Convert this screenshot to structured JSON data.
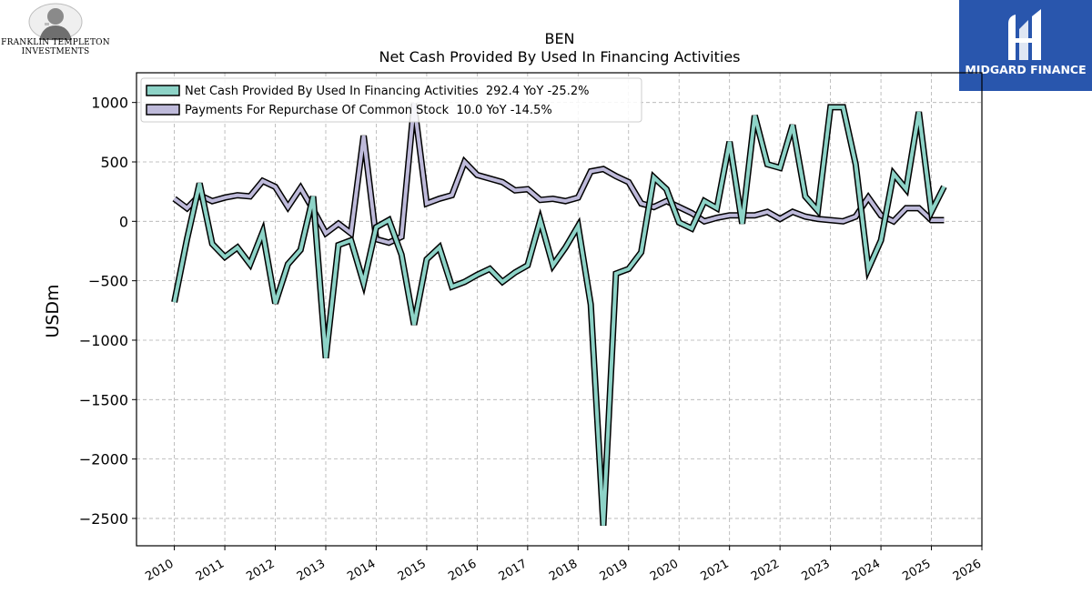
{
  "header": {
    "left_logo": {
      "line1": "FRANKLIN TEMPLETON",
      "line2": "INVESTMENTS",
      "icon": "portrait-seal-icon"
    },
    "right_logo": {
      "name": "MIDGARD FINANCE",
      "icon": "midgard-monogram-icon",
      "background": "#2956ad"
    }
  },
  "chart_data": {
    "type": "line",
    "title": "BEN",
    "subtitle": "Net Cash Provided By Used In Financing Activities",
    "ylabel": "USDm",
    "xlabel": "",
    "xlim": [
      2009.25,
      2026.0
    ],
    "ylim": [
      -2730,
      1250
    ],
    "x_ticks": [
      2010,
      2011,
      2012,
      2013,
      2014,
      2015,
      2016,
      2017,
      2018,
      2019,
      2020,
      2021,
      2022,
      2023,
      2024,
      2025,
      2026
    ],
    "y_ticks": [
      1000,
      500,
      0,
      -500,
      -1000,
      -1500,
      -2000,
      -2500
    ],
    "y_tick_labels": [
      "1000",
      "500",
      "0",
      "−500",
      "−1000",
      "−1500",
      "−2000",
      "−2500"
    ],
    "grid": true,
    "legend_position": "top-left",
    "x": [
      2010.0,
      2010.25,
      2010.5,
      2010.75,
      2011.0,
      2011.25,
      2011.5,
      2011.75,
      2012.0,
      2012.25,
      2012.5,
      2012.75,
      2013.0,
      2013.25,
      2013.5,
      2013.75,
      2014.0,
      2014.25,
      2014.5,
      2014.75,
      2015.0,
      2015.25,
      2015.5,
      2015.75,
      2016.0,
      2016.25,
      2016.5,
      2016.75,
      2017.0,
      2017.25,
      2017.5,
      2017.75,
      2018.0,
      2018.25,
      2018.5,
      2018.75,
      2019.0,
      2019.25,
      2019.5,
      2019.75,
      2020.0,
      2020.25,
      2020.5,
      2020.75,
      2021.0,
      2021.25,
      2021.5,
      2021.75,
      2022.0,
      2022.25,
      2022.5,
      2022.75,
      2023.0,
      2023.25,
      2023.5,
      2023.75,
      2024.0,
      2024.25,
      2024.5,
      2024.75,
      2025.0,
      2025.25
    ],
    "series": [
      {
        "name": "Net Cash Provided By Used In Financing Activities",
        "latest": "292.4",
        "yoy": "-25.2%",
        "legend_label": "Net Cash Provided By Used In Financing Activities  292.4 YoY -25.2%",
        "color": "#8dd3c7",
        "values": [
          -680,
          -150,
          320,
          -190,
          -300,
          -220,
          -360,
          -90,
          -690,
          -360,
          -240,
          210,
          -1150,
          -200,
          -160,
          -520,
          -50,
          10,
          -280,
          -870,
          -320,
          -220,
          -550,
          -510,
          -450,
          -400,
          -510,
          -430,
          -370,
          10,
          -370,
          -220,
          -40,
          -700,
          -2560,
          -440,
          -400,
          -260,
          370,
          270,
          -10,
          -60,
          170,
          110,
          670,
          -20,
          890,
          480,
          450,
          810,
          210,
          90,
          960,
          960,
          480,
          -400,
          -160,
          400,
          270,
          920,
          80,
          292
        ]
      },
      {
        "name": "Payments For Repurchase Of Common Stock",
        "latest": "10.0",
        "yoy": "-14.5%",
        "legend_label": "Payments For Repurchase Of Common Stock  10.0 YoY -14.5%",
        "color": "#bebada",
        "values": [
          190,
          110,
          220,
          170,
          200,
          220,
          210,
          340,
          290,
          120,
          280,
          100,
          -100,
          -20,
          -100,
          720,
          -150,
          -180,
          -130,
          990,
          150,
          190,
          220,
          500,
          390,
          360,
          330,
          260,
          270,
          180,
          190,
          170,
          200,
          420,
          440,
          380,
          330,
          150,
          120,
          170,
          120,
          70,
          0,
          30,
          50,
          50,
          50,
          80,
          20,
          80,
          40,
          20,
          10,
          0,
          40,
          200,
          50,
          0,
          110,
          110,
          10,
          10
        ]
      }
    ]
  }
}
